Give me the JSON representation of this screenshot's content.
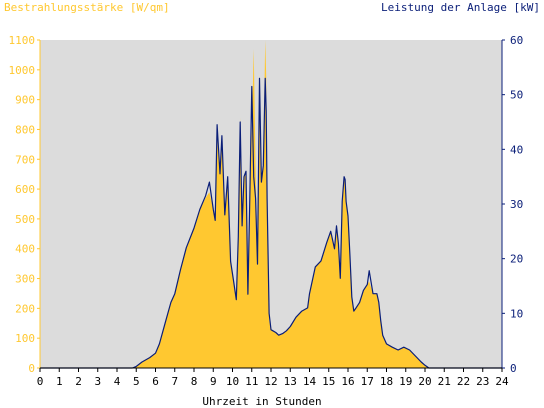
{
  "chart_data": {
    "type": "area",
    "left_axis_title": "Bestrahlungsstärke [W/qm]",
    "right_axis_title": "Leistung der Anlage [kW]",
    "xlabel": "Uhrzeit in Stunden",
    "xlim": [
      0,
      24
    ],
    "x_ticks": [
      "0",
      "1",
      "2",
      "3",
      "4",
      "5",
      "6",
      "7",
      "8",
      "9",
      "10",
      "11",
      "12",
      "13",
      "14",
      "15",
      "16",
      "17",
      "18",
      "19",
      "20",
      "21",
      "22",
      "23",
      "24"
    ],
    "y_left_lim": [
      0,
      1100
    ],
    "y_left_ticks": [
      "0",
      "100",
      "200",
      "300",
      "400",
      "500",
      "600",
      "700",
      "800",
      "900",
      "1000",
      "1100"
    ],
    "y_right_lim": [
      0,
      60
    ],
    "y_right_ticks": [
      "0",
      "10",
      "20",
      "30",
      "40",
      "50",
      "60"
    ],
    "grid": false,
    "colors": {
      "plot_background": "#dcdcdc",
      "irradiance": "#ffc830",
      "power": "#0a1e78",
      "left_axis_text": "#ffc830",
      "right_axis_text": "#0a1e78",
      "tick_text": "#000000"
    },
    "series": [
      {
        "name": "Bestrahlungsstärke [W/qm]",
        "axis": "left",
        "style": "area",
        "x": [
          0,
          4.8,
          5.0,
          5.3,
          5.7,
          6.0,
          6.2,
          6.5,
          6.8,
          7.0,
          7.3,
          7.6,
          8.0,
          8.3,
          8.6,
          8.8,
          9.0,
          9.1,
          9.2,
          9.35,
          9.45,
          9.6,
          9.75,
          9.9,
          10.05,
          10.2,
          10.3,
          10.4,
          10.5,
          10.6,
          10.7,
          10.8,
          10.9,
          11.0,
          11.1,
          11.2,
          11.3,
          11.4,
          11.5,
          11.6,
          11.7,
          11.75,
          11.8,
          11.9,
          12.0,
          12.1,
          12.25,
          12.4,
          12.6,
          12.8,
          13.0,
          13.3,
          13.6,
          13.9,
          14.0,
          14.3,
          14.6,
          14.9,
          15.1,
          15.3,
          15.4,
          15.5,
          15.6,
          15.7,
          15.8,
          15.85,
          15.9,
          16.0,
          16.1,
          16.2,
          16.3,
          16.4,
          16.6,
          16.8,
          17.0,
          17.1,
          17.3,
          17.5,
          17.6,
          17.7,
          17.8,
          18.0,
          18.3,
          18.6,
          18.9,
          19.2,
          19.5,
          19.8,
          20.0,
          20.2,
          24
        ],
        "y": [
          0,
          0,
          5,
          20,
          35,
          50,
          80,
          150,
          220,
          250,
          330,
          400,
          470,
          530,
          570,
          590,
          530,
          500,
          770,
          650,
          780,
          520,
          640,
          360,
          300,
          230,
          440,
          840,
          470,
          640,
          650,
          250,
          560,
          790,
          1070,
          680,
          340,
          980,
          620,
          680,
          1100,
          980,
          560,
          160,
          130,
          125,
          120,
          110,
          115,
          125,
          140,
          170,
          190,
          200,
          250,
          340,
          360,
          420,
          460,
          400,
          470,
          420,
          300,
          560,
          640,
          620,
          560,
          510,
          380,
          240,
          190,
          200,
          220,
          260,
          280,
          290,
          250,
          250,
          220,
          160,
          110,
          80,
          70,
          60,
          70,
          60,
          40,
          20,
          10,
          0,
          0
        ]
      },
      {
        "name": "Leistung der Anlage [kW]",
        "axis": "right",
        "style": "line",
        "x": [
          0,
          4.8,
          5.0,
          5.3,
          5.7,
          6.0,
          6.2,
          6.5,
          6.8,
          7.0,
          7.3,
          7.6,
          8.0,
          8.3,
          8.6,
          8.8,
          9.0,
          9.1,
          9.2,
          9.35,
          9.45,
          9.6,
          9.75,
          9.9,
          10.05,
          10.2,
          10.3,
          10.4,
          10.5,
          10.6,
          10.7,
          10.8,
          10.9,
          11.0,
          11.1,
          11.2,
          11.3,
          11.4,
          11.5,
          11.6,
          11.7,
          11.75,
          11.8,
          11.9,
          12.0,
          12.1,
          12.25,
          12.4,
          12.6,
          12.8,
          13.0,
          13.3,
          13.6,
          13.9,
          14.0,
          14.3,
          14.6,
          14.9,
          15.1,
          15.3,
          15.4,
          15.5,
          15.6,
          15.7,
          15.8,
          15.85,
          15.9,
          16.0,
          16.1,
          16.2,
          16.3,
          16.4,
          16.6,
          16.8,
          17.0,
          17.1,
          17.3,
          17.5,
          17.6,
          17.7,
          17.8,
          18.0,
          18.3,
          18.6,
          18.9,
          19.2,
          19.5,
          19.8,
          20.0,
          20.2,
          24
        ],
        "y": [
          0,
          0,
          0.3,
          1.1,
          1.9,
          2.7,
          4.4,
          8.2,
          12,
          13.6,
          18,
          22,
          25.6,
          29,
          31.5,
          34,
          29,
          27,
          44.5,
          35.5,
          42.5,
          28,
          35,
          19.5,
          16,
          12.5,
          24,
          45,
          26,
          35,
          36,
          13.5,
          31,
          51.5,
          35,
          31,
          19,
          53,
          34,
          37,
          53,
          47,
          31,
          10,
          7,
          6.8,
          6.5,
          6,
          6.3,
          6.8,
          7.6,
          9.3,
          10.4,
          11,
          13.6,
          18.5,
          19.6,
          23,
          25,
          21.8,
          26,
          22.8,
          16.4,
          30.5,
          35,
          34.5,
          30.5,
          27.8,
          20.7,
          13,
          10.4,
          10.9,
          12,
          14.2,
          15.3,
          17.8,
          13.6,
          13.6,
          12,
          8.7,
          6,
          4.4,
          3.8,
          3.3,
          3.8,
          3.3,
          2.2,
          1.1,
          0.5,
          0,
          0
        ]
      }
    ]
  }
}
